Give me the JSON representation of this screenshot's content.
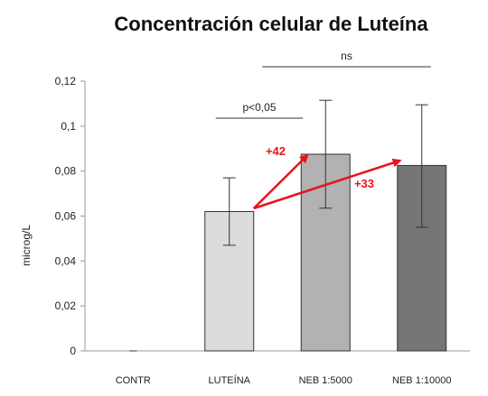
{
  "chart_data": {
    "type": "bar",
    "title": "Concentración celular de Luteína",
    "xlabel": "",
    "ylabel": "microg/L",
    "ylim": [
      0,
      0.12
    ],
    "yticks": [
      0,
      0.02,
      0.04,
      0.06,
      0.08,
      0.1,
      0.12
    ],
    "ytick_labels": [
      "0",
      "0,02",
      "0,04",
      "0,06",
      "0,08",
      "0,1",
      "0,12"
    ],
    "categories": [
      "CONTR",
      "LUTEÍNA",
      "NEB 1:5000",
      "NEB 1:10000"
    ],
    "values": [
      0,
      0.062,
      0.0875,
      0.0825
    ],
    "error_low": [
      0,
      0.047,
      0.0635,
      0.055
    ],
    "error_high": [
      0,
      0.077,
      0.1115,
      0.1095
    ],
    "bar_colors": [
      "#ffffff",
      "#dcdcdc",
      "#b2b2b2",
      "#767676"
    ],
    "grid": false,
    "significance": [
      {
        "label": "p<0,05",
        "from": 1,
        "to": 2
      },
      {
        "label": "ns",
        "from": 2,
        "to": 3
      }
    ],
    "increase_annotations": [
      {
        "label": "+42",
        "from": 1,
        "to": 2
      },
      {
        "label": "+33",
        "from": 1,
        "to": 3
      }
    ],
    "arrow_color": "#e8141a"
  }
}
